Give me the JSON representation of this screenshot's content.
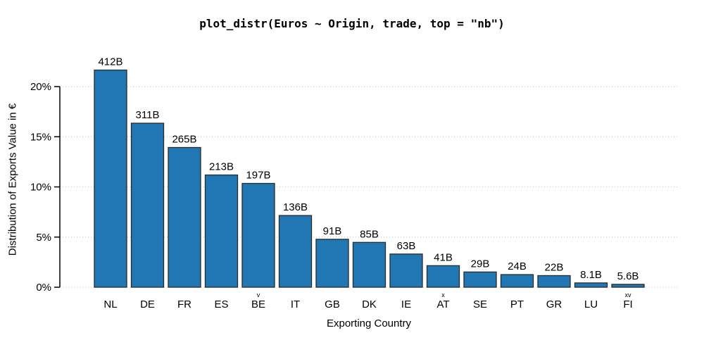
{
  "chart_data": {
    "type": "bar",
    "title": "plot_distr(Euros ~ Origin, trade, top = \"nb\")",
    "xlabel": "Exporting Country",
    "ylabel": "Distribution of Exports Value in €",
    "categories": [
      "NL",
      "DE",
      "FR",
      "ES",
      "BE",
      "IT",
      "GB",
      "DK",
      "IE",
      "AT",
      "SE",
      "PT",
      "GR",
      "LU",
      "FI"
    ],
    "category_superscripts": [
      "",
      "",
      "",
      "",
      "v",
      "",
      "",
      "",
      "",
      "x",
      "",
      "",
      "",
      "",
      "xv"
    ],
    "bar_labels": [
      "412B",
      "311B",
      "265B",
      "213B",
      "197B",
      "136B",
      "91B",
      "85B",
      "63B",
      "41B",
      "29B",
      "24B",
      "22B",
      "8.1B",
      "5.6B"
    ],
    "values_billions": [
      412,
      311,
      265,
      213,
      197,
      136,
      91,
      85,
      63,
      41,
      29,
      24,
      22,
      8.1,
      5.6
    ],
    "values_percent": [
      21.65,
      16.35,
      13.93,
      11.19,
      10.35,
      7.15,
      4.78,
      4.47,
      3.31,
      2.15,
      1.52,
      1.26,
      1.16,
      0.43,
      0.29
    ],
    "yticks": [
      0,
      5,
      10,
      15,
      20
    ],
    "ytick_labels": [
      "0%",
      "5%",
      "10%",
      "15%",
      "20%"
    ],
    "ylim": [
      0,
      22.5
    ],
    "grid": "horizontal-dotted",
    "legend": "none",
    "bar_fill": "#2077b4",
    "bar_border": "#2b2b2b",
    "grid_color": "#bdbdbd",
    "axis_color": "#000000"
  }
}
